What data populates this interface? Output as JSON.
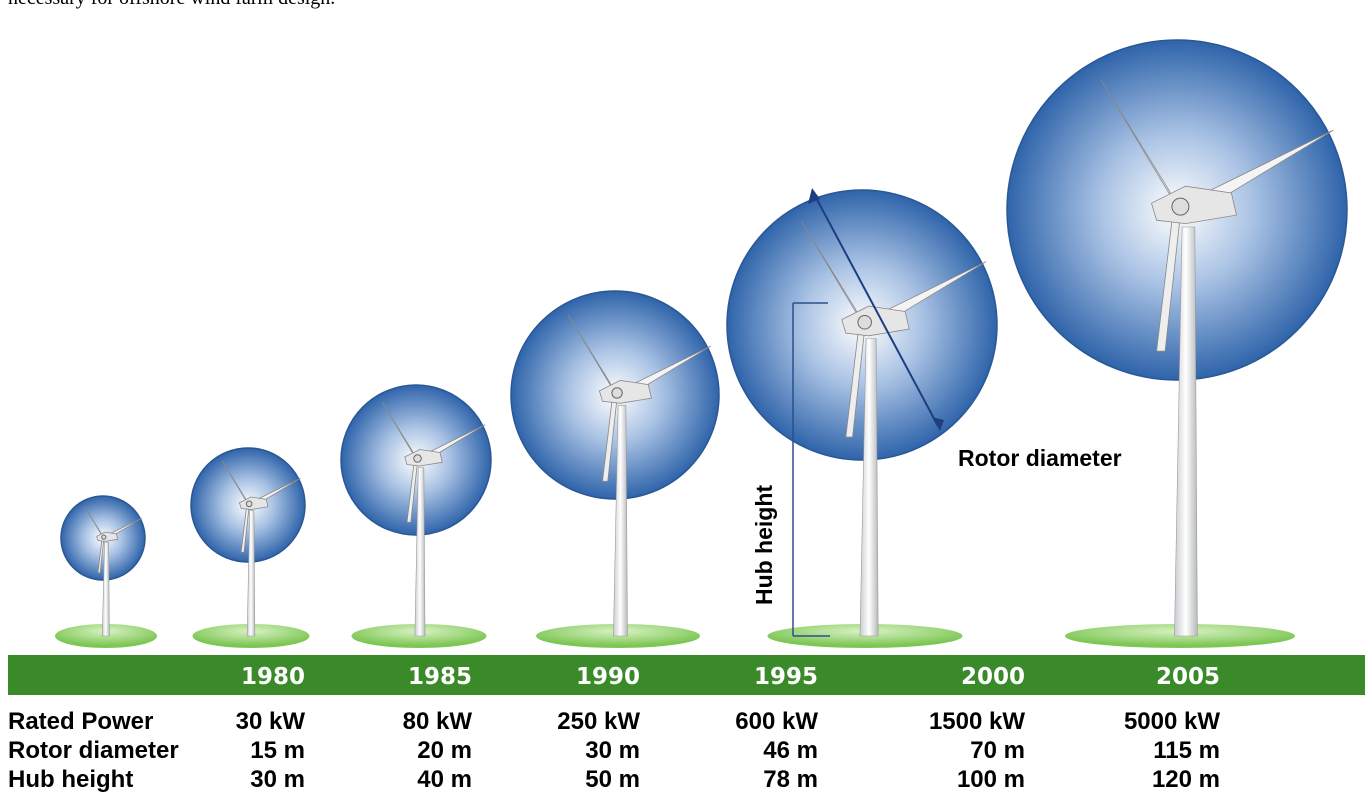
{
  "caption": "necessary for offshore wind farm design.",
  "years": [
    "1980",
    "1985",
    "1990",
    "1995",
    "2000",
    "2005"
  ],
  "rows": [
    {
      "label": "Rated Power",
      "values": [
        "30 kW",
        "80 kW",
        "250 kW",
        "600 kW",
        "1500 kW",
        "5000 kW"
      ]
    },
    {
      "label": "Rotor diameter",
      "values": [
        "15 m",
        "20 m",
        "30 m",
        "46 m",
        "70 m",
        "115 m"
      ]
    },
    {
      "label": "Hub height",
      "values": [
        "30 m",
        "40 m",
        "50 m",
        "78 m",
        "100 m",
        "120 m"
      ]
    }
  ],
  "annotations": {
    "rotor_diameter": "Rotor diameter",
    "hub_height": "Hub height"
  }
}
